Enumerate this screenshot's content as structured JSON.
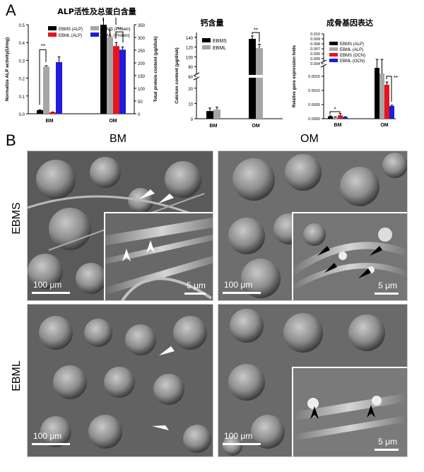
{
  "panel_a_label": "A",
  "panel_b_label": "B",
  "chart_data": [
    {
      "type": "bar",
      "title": "ALP活性及总蛋白含量",
      "categories": [
        "BM",
        "OM"
      ],
      "ylabel": "Normalize ALP activity(U/mg)",
      "ylim": [
        0,
        0.5
      ],
      "yticks": [
        "0.0",
        "0.1",
        "0.2",
        "0.3",
        "0.4",
        "0.5"
      ],
      "y2label": "Total protein content (μg/disk)",
      "y2lim": [
        0,
        350
      ],
      "y2ticks": [
        "0",
        "50",
        "100",
        "150",
        "200",
        "250",
        "300",
        "350"
      ],
      "series": [
        {
          "name": "EBMS (ALP)",
          "color": "#000000",
          "values": [
            0.02,
            0.5
          ],
          "err": [
            0.003,
            0.05
          ]
        },
        {
          "name": "EBMS (Protein)",
          "color": "#a6a6a6",
          "values": [
            0.265,
            0.43
          ],
          "err": [
            0.005,
            0.04
          ]
        },
        {
          "name": "EBML (ALP)",
          "color": "#e8141c",
          "values": [
            0.008,
            0.38
          ],
          "err": [
            0.002,
            0.02
          ]
        },
        {
          "name": "EBML (Protein)",
          "color": "#1f1bdf",
          "values": [
            0.29,
            0.36
          ],
          "err": [
            0.03,
            0.015
          ]
        }
      ],
      "significance": [
        "**",
        "**",
        "**"
      ]
    },
    {
      "type": "bar",
      "title": "钙含量",
      "categories": [
        "BM",
        "OM"
      ],
      "ylabel": "Calcium content (μg/disk)",
      "yticks_low": [
        "0",
        "10",
        "20"
      ],
      "yticks_high": [
        "60",
        "80",
        "100",
        "120",
        "140"
      ],
      "series": [
        {
          "name": "EBMS",
          "color": "#000000",
          "values": [
            5,
            137
          ],
          "err": [
            2,
            6
          ]
        },
        {
          "name": "EBML",
          "color": "#a6a6a6",
          "values": [
            6,
            118
          ],
          "err": [
            1.5,
            8
          ]
        }
      ],
      "significance": [
        "**"
      ]
    },
    {
      "type": "bar",
      "title": "成骨基因表达",
      "categories": [
        "BM",
        "OM"
      ],
      "ylabel": "Relative gene expression folds",
      "yticks_low": [
        "0.0000",
        "0.0005",
        "0.0010",
        "0.0015"
      ],
      "yticks_high": [
        "0.004",
        "0.005",
        "0.006",
        "0.007",
        "0.008",
        "0.009",
        "0.010"
      ],
      "series": [
        {
          "name": "EBMS (ALP)",
          "color": "#000000",
          "values": [
            8e-05,
            0.0018
          ],
          "err": [
            2e-05,
            0.0004
          ]
        },
        {
          "name": "EBML (ALP)",
          "color": "#a6a6a6",
          "values": [
            5e-05,
            0.0016
          ],
          "err": [
            2e-05,
            0.0009
          ]
        },
        {
          "name": "EBMS (OCN)",
          "color": "#e8141c",
          "values": [
            0.00012,
            0.0012
          ],
          "err": [
            6e-05,
            0.0001
          ]
        },
        {
          "name": "EBML (OCN)",
          "color": "#1f1bdf",
          "values": [
            6e-05,
            0.00045
          ],
          "err": [
            1e-05,
            3e-05
          ]
        }
      ],
      "significance": [
        "*",
        "**"
      ]
    }
  ],
  "sem": {
    "col_bm": "BM",
    "col_om": "OM",
    "row_ebms": "EBMS",
    "row_ebml": "EBML",
    "scale_100": "100 μm",
    "scale_5": "5 μm"
  }
}
